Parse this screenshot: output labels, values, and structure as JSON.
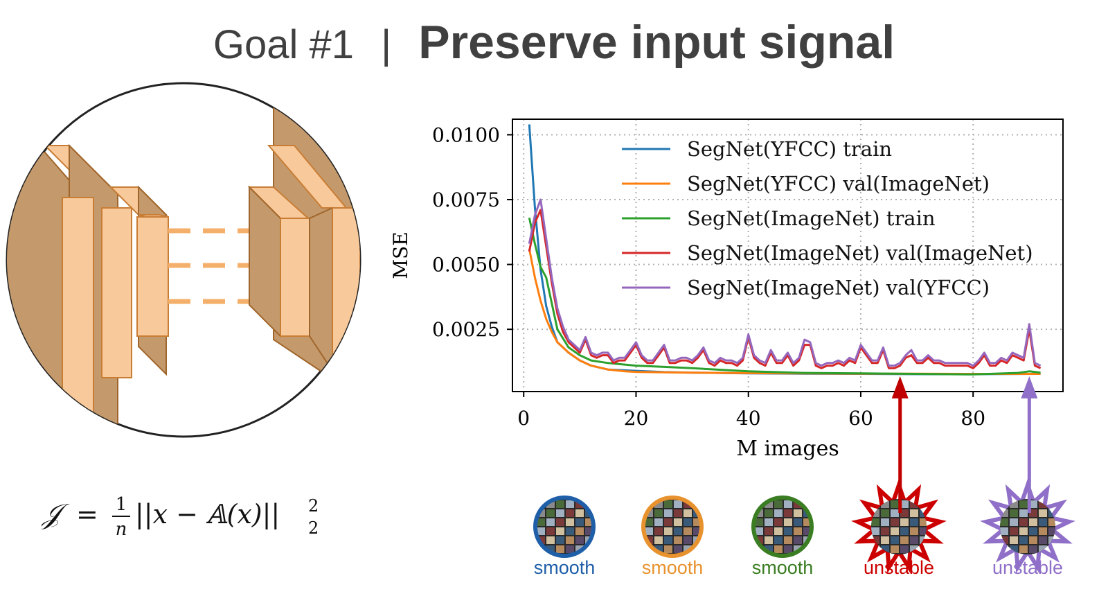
{
  "slide": {
    "goal_label": "Goal #1",
    "separator": "|",
    "title": "Preserve input signal"
  },
  "formula": {
    "lhs": "𝒥",
    "eq": "=",
    "frac_num": "1",
    "frac_den": "n",
    "body": "||x − 𝔸(x)||",
    "sup": "2",
    "sub": "2"
  },
  "chart_data": {
    "type": "line",
    "xlabel": "M images",
    "ylabel": "MSE",
    "xlim": [
      -2,
      96
    ],
    "ylim": [
      0.0001,
      0.0106
    ],
    "xticks": [
      0,
      20,
      40,
      60,
      80
    ],
    "yticks": [
      0.0025,
      0.005,
      0.0075,
      0.01
    ],
    "ytick_labels": [
      "0.0025",
      "0.0050",
      "0.0075",
      "0.0100"
    ],
    "grid": true,
    "legend_position": "top-right",
    "series": [
      {
        "name": "SegNet(YFCC) train",
        "color": "#1f77b4",
        "x": [
          1,
          2,
          3,
          4,
          5,
          6,
          8,
          10,
          12,
          15,
          20,
          25,
          30,
          40,
          50,
          60,
          70,
          80,
          92
        ],
        "y": [
          0.0104,
          0.0072,
          0.0048,
          0.0034,
          0.0026,
          0.002,
          0.0016,
          0.0013,
          0.0011,
          0.00095,
          0.0009,
          0.00085,
          0.00083,
          0.0008,
          0.00079,
          0.00078,
          0.00077,
          0.00077,
          0.00078
        ]
      },
      {
        "name": "SegNet(YFCC) val(ImageNet)",
        "color": "#ff7f0e",
        "x": [
          1,
          2,
          3,
          4,
          5,
          6,
          8,
          10,
          12,
          15,
          18,
          20,
          25,
          30,
          40,
          50,
          60,
          70,
          80,
          92
        ],
        "y": [
          0.0056,
          0.0045,
          0.0036,
          0.0029,
          0.0024,
          0.002,
          0.0016,
          0.0013,
          0.0011,
          0.00095,
          0.00088,
          0.00086,
          0.00084,
          0.00083,
          0.00081,
          0.0008,
          0.00079,
          0.00079,
          0.00078,
          0.00078
        ]
      },
      {
        "name": "SegNet(ImageNet) train",
        "color": "#2ca02c",
        "x": [
          1,
          2,
          3,
          4,
          5,
          6,
          8,
          10,
          12,
          15,
          20,
          25,
          30,
          40,
          50,
          60,
          70,
          80,
          88,
          90,
          92
        ],
        "y": [
          0.0068,
          0.0058,
          0.0049,
          0.0045,
          0.0035,
          0.0025,
          0.0018,
          0.0015,
          0.0013,
          0.0012,
          0.0011,
          0.00105,
          0.001,
          0.00088,
          0.00082,
          0.0008,
          0.00078,
          0.00076,
          0.00082,
          0.00088,
          0.00083
        ]
      },
      {
        "name": "SegNet(ImageNet) val(ImageNet)",
        "color": "#d62728",
        "x": [
          1,
          2,
          3,
          4,
          5,
          6,
          7,
          8,
          9,
          10,
          11,
          12,
          13,
          14,
          15,
          16,
          17,
          18,
          19,
          20,
          21,
          22,
          23,
          24,
          25,
          26,
          27,
          28,
          29,
          30,
          31,
          32,
          33,
          34,
          35,
          36,
          37,
          38,
          39,
          40,
          41,
          42,
          43,
          44,
          45,
          46,
          47,
          48,
          49,
          50,
          51,
          52,
          53,
          54,
          55,
          56,
          57,
          58,
          59,
          60,
          61,
          62,
          63,
          64,
          65,
          66,
          67,
          68,
          69,
          70,
          71,
          72,
          73,
          74,
          75,
          76,
          77,
          78,
          79,
          80,
          81,
          82,
          83,
          84,
          85,
          86,
          87,
          88,
          89,
          90,
          91,
          92
        ],
        "y": [
          0.0055,
          0.0066,
          0.0071,
          0.0057,
          0.0043,
          0.0031,
          0.0024,
          0.002,
          0.0018,
          0.0016,
          0.0021,
          0.0015,
          0.0014,
          0.0015,
          0.0015,
          0.0012,
          0.0013,
          0.0013,
          0.0016,
          0.0019,
          0.0014,
          0.0012,
          0.0012,
          0.0015,
          0.0018,
          0.0012,
          0.0012,
          0.0013,
          0.0013,
          0.0012,
          0.0014,
          0.0017,
          0.0012,
          0.0011,
          0.0013,
          0.0012,
          0.0012,
          0.0011,
          0.0013,
          0.0022,
          0.0014,
          0.0012,
          0.0011,
          0.0016,
          0.0012,
          0.0012,
          0.0015,
          0.0011,
          0.0013,
          0.0019,
          0.0019,
          0.0011,
          0.001,
          0.0011,
          0.0011,
          0.0012,
          0.0011,
          0.0013,
          0.0012,
          0.0018,
          0.0015,
          0.0012,
          0.0012,
          0.0017,
          0.001,
          0.001,
          0.0011,
          0.0014,
          0.0015,
          0.0012,
          0.0012,
          0.0014,
          0.0012,
          0.0012,
          0.0011,
          0.0011,
          0.0011,
          0.0011,
          0.0011,
          0.001,
          0.0012,
          0.0015,
          0.0011,
          0.0011,
          0.0013,
          0.0012,
          0.0015,
          0.0014,
          0.0013,
          0.0025,
          0.0011,
          0.001
        ]
      },
      {
        "name": "SegNet(ImageNet) val(YFCC)",
        "color": "#9467bd",
        "x": [
          1,
          2,
          3,
          4,
          5,
          6,
          7,
          8,
          9,
          10,
          11,
          12,
          13,
          14,
          15,
          16,
          17,
          18,
          19,
          20,
          21,
          22,
          23,
          24,
          25,
          26,
          27,
          28,
          29,
          30,
          31,
          32,
          33,
          34,
          35,
          36,
          37,
          38,
          39,
          40,
          41,
          42,
          43,
          44,
          45,
          46,
          47,
          48,
          49,
          50,
          51,
          52,
          53,
          54,
          55,
          56,
          57,
          58,
          59,
          60,
          61,
          62,
          63,
          64,
          65,
          66,
          67,
          68,
          69,
          70,
          71,
          72,
          73,
          74,
          75,
          76,
          77,
          78,
          79,
          80,
          81,
          82,
          83,
          84,
          85,
          86,
          87,
          88,
          89,
          90,
          91,
          92
        ],
        "y": [
          0.0058,
          0.0069,
          0.0075,
          0.006,
          0.0045,
          0.0033,
          0.0026,
          0.0021,
          0.0019,
          0.0017,
          0.0022,
          0.0016,
          0.0015,
          0.0016,
          0.0016,
          0.0013,
          0.0014,
          0.0014,
          0.0017,
          0.002,
          0.0015,
          0.0013,
          0.0013,
          0.0016,
          0.0019,
          0.0013,
          0.0013,
          0.0014,
          0.0014,
          0.0013,
          0.0015,
          0.0018,
          0.0013,
          0.0012,
          0.0014,
          0.0013,
          0.0013,
          0.0012,
          0.0014,
          0.0023,
          0.0015,
          0.0013,
          0.0012,
          0.0017,
          0.0013,
          0.0013,
          0.0016,
          0.0012,
          0.0014,
          0.0021,
          0.002,
          0.0012,
          0.0011,
          0.0012,
          0.0012,
          0.0013,
          0.0012,
          0.0014,
          0.0013,
          0.0019,
          0.0016,
          0.0013,
          0.0013,
          0.0018,
          0.0011,
          0.0011,
          0.0012,
          0.0015,
          0.0017,
          0.0013,
          0.0013,
          0.0015,
          0.0013,
          0.0013,
          0.0012,
          0.0012,
          0.0012,
          0.0012,
          0.0012,
          0.0011,
          0.0013,
          0.0016,
          0.0012,
          0.0012,
          0.0014,
          0.0013,
          0.0016,
          0.0015,
          0.0014,
          0.0027,
          0.0012,
          0.0011
        ]
      }
    ],
    "callouts": [
      {
        "x": 67,
        "y": 0.00085,
        "color": "#c00000",
        "target_thumb": 3
      },
      {
        "x": 90,
        "y": 0.00085,
        "color": "#9070c8",
        "target_thumb": 4
      }
    ]
  },
  "thumbnails": [
    {
      "label": "smooth",
      "color": "#1f5fa8",
      "shape": "circle"
    },
    {
      "label": "smooth",
      "color": "#e8922e",
      "shape": "circle"
    },
    {
      "label": "smooth",
      "color": "#3a7d22",
      "shape": "circle"
    },
    {
      "label": "unstable",
      "color": "#cc0000",
      "shape": "burst"
    },
    {
      "label": "unstable",
      "color": "#8f6fc8",
      "shape": "burst"
    }
  ],
  "thumbnail_icon": "image-mosaic-icon"
}
